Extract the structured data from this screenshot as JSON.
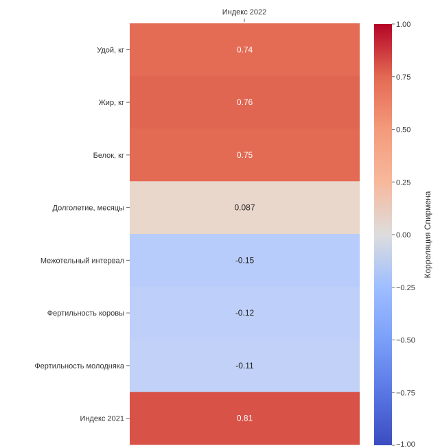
{
  "chart_data": {
    "type": "heatmap",
    "columns": [
      "Индекс 2022"
    ],
    "rows": [
      "Удой, кг",
      "Жир, кг",
      "Белок, кг",
      "Долголетие, месяцы",
      "Межотельный интервал",
      "Фертильность коровы",
      "Фертильность молодняка",
      "Индекс 2021"
    ],
    "values": [
      0.74,
      0.76,
      0.75,
      0.087,
      -0.15,
      -0.12,
      -0.11,
      0.81
    ],
    "value_labels": [
      "0.74",
      "0.76",
      "0.75",
      "0.087",
      "-0.15",
      "-0.12",
      "-0.11",
      "0.81"
    ],
    "colorbar": {
      "label": "Корреляция Спирмена",
      "range": [
        -1.0,
        1.0
      ],
      "ticks": [
        1.0,
        0.75,
        0.5,
        0.25,
        0.0,
        -0.25,
        -0.5,
        -0.75,
        -1.0
      ],
      "tick_labels": [
        "1.00",
        "0.75",
        "0.50",
        "0.25",
        "0.00",
        "−0.25",
        "−0.50",
        "−0.75",
        "−1.00"
      ],
      "colormap": "coolwarm",
      "low_color": "#3b4cc0",
      "mid_color": "#dddddd",
      "high_color": "#b40426"
    }
  }
}
